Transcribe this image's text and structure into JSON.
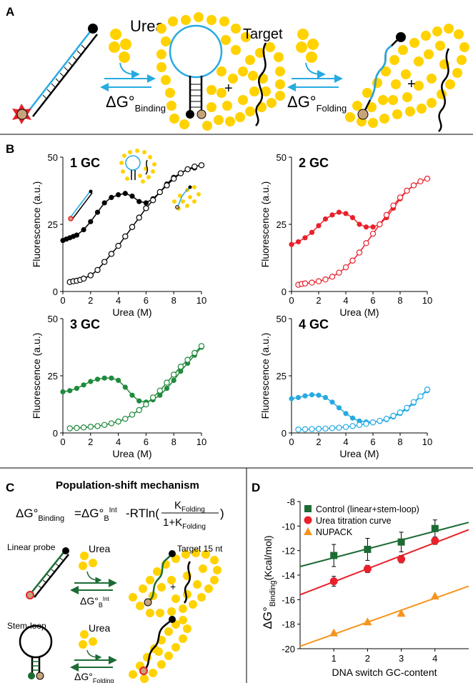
{
  "panel_a": {
    "label": "A",
    "urea_label": "Urea",
    "target_label": "Target",
    "plus": "+",
    "dg_binding_main": "ΔG°",
    "dg_binding_sub": "Binding",
    "dg_folding_main": "ΔG°",
    "dg_folding_sub": "Folding"
  },
  "panel_b": {
    "label": "B"
  },
  "panel_c": {
    "label": "C",
    "title": "Population-shift mechanism",
    "eq_lhs_main": "ΔG°",
    "eq_lhs_sub": "Binding",
    "eq_mid_main": "=ΔG°",
    "eq_mid_sub": "B",
    "eq_mid_sup": "Int",
    "eq_rt": "-RTln(",
    "eq_close": ")",
    "eq_num_main": "K",
    "eq_num_sub": "Folding",
    "eq_den_main": "1+K",
    "eq_den_sub": "Folding",
    "linear_probe_label": "Linear probe",
    "stem_loop_label": "Stem-loop",
    "urea_label_1": "Urea",
    "urea_label_2": "Urea",
    "target_label": "Target 15 nt",
    "plus": "+",
    "dg_int_main": "ΔG°",
    "dg_int_sub": "B",
    "dg_int_sup": "Int",
    "dg_fold_main": "ΔG°",
    "dg_fold_sub": "Folding"
  },
  "panel_d": {
    "label": "D"
  },
  "colors": {
    "black": "#000000",
    "red": "#e8212b",
    "green": "#1f8a3c",
    "blue": "#27aae1",
    "dark_green": "#1c6b34",
    "orange": "#f7941d",
    "yellow": "#ffd700",
    "urea_yellow": "#ffd200"
  },
  "chart_data": [
    {
      "id": "b1",
      "type": "line",
      "title": "1 GC",
      "title_color": "#000000",
      "xlabel": "Urea (M)",
      "ylabel": "Fluorescence (a.u.)",
      "xlim": [
        0,
        10
      ],
      "ylim": [
        0,
        50
      ],
      "xticks": [
        0,
        2,
        4,
        6,
        8,
        10
      ],
      "yticks": [
        0,
        25,
        50
      ],
      "series": [
        {
          "marker": "filled",
          "color": "#000000",
          "x": [
            0,
            0.25,
            0.5,
            0.75,
            1.0,
            1.5,
            2.0,
            2.5,
            3.0,
            3.5,
            4.0,
            4.5,
            5.0,
            5.5,
            6.0,
            6.5,
            7.0,
            7.5,
            8.0,
            8.5,
            9.0,
            9.5
          ],
          "y": [
            19,
            19.5,
            20,
            20.5,
            21,
            23,
            26,
            29.5,
            33,
            35,
            36,
            36.5,
            35.5,
            33.5,
            33,
            34.5,
            37,
            40,
            42.5,
            44,
            45.5,
            46
          ]
        },
        {
          "marker": "open",
          "color": "#000000",
          "x": [
            0.5,
            0.75,
            1.0,
            1.25,
            1.5,
            2.0,
            2.5,
            3.0,
            3.5,
            4.0,
            4.5,
            5.0,
            5.5,
            6.0,
            6.5,
            7.0,
            7.5,
            8.0,
            8.5,
            9.0,
            9.5,
            10.0
          ],
          "y": [
            3.5,
            3.8,
            4,
            4.3,
            4.8,
            6,
            8,
            11,
            14,
            17,
            20.5,
            24,
            27.5,
            31,
            34,
            37,
            39.5,
            42,
            44,
            45.5,
            46.5,
            47
          ]
        }
      ]
    },
    {
      "id": "b2",
      "type": "line",
      "title": "2 GC",
      "title_color": "#e8212b",
      "xlabel": "Urea (M)",
      "ylabel": "Fluorescence (a.u.)",
      "xlim": [
        0,
        10
      ],
      "ylim": [
        0,
        50
      ],
      "xticks": [
        0,
        2,
        4,
        6,
        8,
        10
      ],
      "yticks": [
        0,
        25,
        50
      ],
      "series": [
        {
          "marker": "filled",
          "color": "#e8212b",
          "x": [
            0,
            0.5,
            1.0,
            1.5,
            2.0,
            2.5,
            3.0,
            3.5,
            4.0,
            4.5,
            5.0,
            5.5,
            6.0,
            6.5,
            7.0,
            7.5,
            8.0,
            8.5,
            9.0,
            9.5,
            10.0
          ],
          "y": [
            17.5,
            18.5,
            20,
            22,
            24.5,
            27,
            28.5,
            29.5,
            29,
            27.5,
            25,
            24,
            24,
            25,
            27.5,
            31,
            34.5,
            37.5,
            39.5,
            41,
            42
          ]
        },
        {
          "marker": "open",
          "color": "#e8212b",
          "x": [
            0.5,
            0.75,
            1.0,
            1.5,
            2.0,
            2.5,
            3.0,
            3.5,
            4.0,
            4.5,
            5.0,
            5.5,
            6.0,
            6.5,
            7.0,
            7.5,
            8.0,
            8.5,
            9.0,
            9.5,
            10.0
          ],
          "y": [
            2.5,
            2.8,
            3,
            3.3,
            3.8,
            4.5,
            5.5,
            7,
            9,
            11.5,
            14.5,
            18,
            21.5,
            25,
            28.5,
            32,
            35,
            37.5,
            39.5,
            41,
            42
          ]
        }
      ]
    },
    {
      "id": "b3",
      "type": "line",
      "title": "3 GC",
      "title_color": "#1f8a3c",
      "xlabel": "Urea (M)",
      "ylabel": "Fluorescence (a.u.)",
      "xlim": [
        0,
        10
      ],
      "ylim": [
        0,
        50
      ],
      "xticks": [
        0,
        2,
        4,
        6,
        8,
        10
      ],
      "yticks": [
        0,
        25,
        50
      ],
      "series": [
        {
          "marker": "filled",
          "color": "#1f8a3c",
          "x": [
            0,
            0.5,
            1.0,
            1.5,
            2.0,
            2.5,
            3.0,
            3.5,
            4.0,
            4.5,
            5.0,
            5.5,
            6.0,
            6.5,
            7.0,
            7.5,
            8.0,
            8.5,
            9.0,
            9.5,
            10.0
          ],
          "y": [
            18,
            18.5,
            19.5,
            21,
            22.5,
            23.5,
            24,
            24,
            23,
            20,
            16.5,
            14,
            13.5,
            14.5,
            16.5,
            19.5,
            23,
            27,
            30.5,
            34,
            37.5
          ]
        },
        {
          "marker": "open",
          "color": "#1f8a3c",
          "x": [
            0.5,
            1.0,
            1.5,
            2.0,
            2.5,
            3.0,
            3.5,
            4.0,
            4.5,
            5.0,
            5.5,
            6.0,
            6.5,
            7.0,
            7.5,
            8.0,
            8.5,
            9.0,
            9.5,
            10.0
          ],
          "y": [
            2,
            2.2,
            2.4,
            2.7,
            3,
            3.5,
            4.2,
            5,
            6.2,
            8,
            10,
            12.5,
            15.5,
            18.5,
            22,
            25.5,
            29,
            32,
            35,
            38
          ]
        }
      ]
    },
    {
      "id": "b4",
      "type": "line",
      "title": "4 GC",
      "title_color": "#27aae1",
      "xlabel": "Urea (M)",
      "ylabel": "Fluorescence (a.u.)",
      "xlim": [
        0,
        10
      ],
      "ylim": [
        0,
        50
      ],
      "xticks": [
        0,
        2,
        4,
        6,
        8,
        10
      ],
      "yticks": [
        0,
        25,
        50
      ],
      "series": [
        {
          "marker": "filled",
          "color": "#27aae1",
          "x": [
            0,
            0.5,
            1.0,
            1.5,
            2.0,
            2.5,
            3.0,
            3.5,
            4.0,
            4.5,
            5.0,
            5.5,
            6.0,
            6.5,
            7.0,
            7.5,
            8.0,
            8.5,
            9.0,
            9.5,
            10.0
          ],
          "y": [
            15,
            15.5,
            16.2,
            16.7,
            16.5,
            15.5,
            13.5,
            11,
            8.5,
            6.5,
            5.2,
            4.8,
            4.8,
            5,
            5.8,
            7,
            8.5,
            10.5,
            13,
            16,
            18.5
          ]
        },
        {
          "marker": "open",
          "color": "#27aae1",
          "x": [
            0.5,
            1.0,
            1.5,
            2.0,
            2.5,
            3.0,
            3.5,
            4.0,
            4.5,
            5.0,
            5.5,
            6.0,
            6.5,
            7.0,
            7.5,
            8.0,
            8.5,
            9.0,
            9.5,
            10.0
          ],
          "y": [
            1.5,
            1.6,
            1.7,
            1.8,
            1.9,
            2.1,
            2.3,
            2.6,
            3,
            3.5,
            4,
            4.6,
            5.3,
            6.2,
            7.5,
            9,
            11,
            13.5,
            16,
            19
          ]
        }
      ]
    },
    {
      "id": "d",
      "type": "scatter",
      "xlabel": "DNA switch GC-content",
      "ylabel_main": "ΔG°",
      "ylabel_sub": "Binding",
      "ylabel_unit": "(Kcal/mol)",
      "xlim": [
        0,
        5
      ],
      "ylim": [
        -20,
        -8
      ],
      "xticks": [
        1,
        2,
        3,
        4
      ],
      "yticks": [
        -8,
        -10,
        -12,
        -14,
        -16,
        -18,
        -20
      ],
      "legend_position": "top-left",
      "series": [
        {
          "name": "Control (linear+stem-loop)",
          "marker": "square",
          "color": "#1c6b34",
          "x": [
            1,
            2,
            3,
            4
          ],
          "y": [
            -12.4,
            -11.9,
            -11.3,
            -10.2
          ],
          "err": [
            0.9,
            0.9,
            0.8,
            0.7
          ],
          "fit": {
            "x": [
              0,
              5
            ],
            "y": [
              -13.3,
              -9.7
            ]
          }
        },
        {
          "name": "Urea titration curve",
          "marker": "circle",
          "color": "#e8212b",
          "x": [
            1,
            2,
            3,
            4
          ],
          "y": [
            -14.5,
            -13.5,
            -12.7,
            -11.2
          ],
          "err": [
            0.4,
            0.3,
            0.3,
            0.3
          ],
          "fit": {
            "x": [
              0,
              5
            ],
            "y": [
              -15.6,
              -10.3
            ]
          }
        },
        {
          "name": "NUPACK",
          "marker": "triangle",
          "color": "#f7941d",
          "x": [
            1,
            2,
            3,
            4
          ],
          "y": [
            -18.7,
            -17.8,
            -17.1,
            -15.7
          ],
          "err": [
            0,
            0,
            0,
            0
          ],
          "fit": {
            "x": [
              0,
              5
            ],
            "y": [
              -19.8,
              -14.9
            ]
          }
        }
      ]
    }
  ]
}
